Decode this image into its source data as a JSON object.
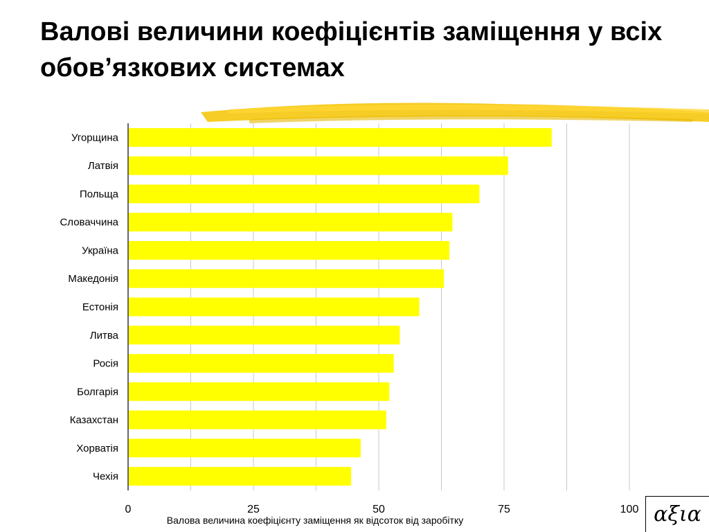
{
  "slide": {
    "title": "Валові величини коефіцієнтів заміщення у всіх обов’язкових системах",
    "logo_text": "αξια"
  },
  "colors": {
    "bar": "#ffff00",
    "brush": "#f5c400",
    "grid": "#c8c8c8"
  },
  "chart_data": {
    "type": "bar",
    "orientation": "horizontal",
    "categories": [
      "Угорщина",
      "Латвія",
      "Польща",
      "Словаччина",
      "Україна",
      "Македонія",
      "Естонія",
      "Литва",
      "Росія",
      "Болгарія",
      "Казахстан",
      "Хорватія",
      "Чехія"
    ],
    "values": [
      84.5,
      75.8,
      70.1,
      64.7,
      64.1,
      63.0,
      58.1,
      54.2,
      53.0,
      52.1,
      51.5,
      46.4,
      44.5
    ],
    "xlabel": "Валова величина коефіцієнту заміщення як відсоток від заробітку",
    "xlim": [
      0,
      100
    ],
    "xticks": [
      0,
      25,
      50,
      75,
      100
    ],
    "grid": true,
    "legend": "none"
  }
}
